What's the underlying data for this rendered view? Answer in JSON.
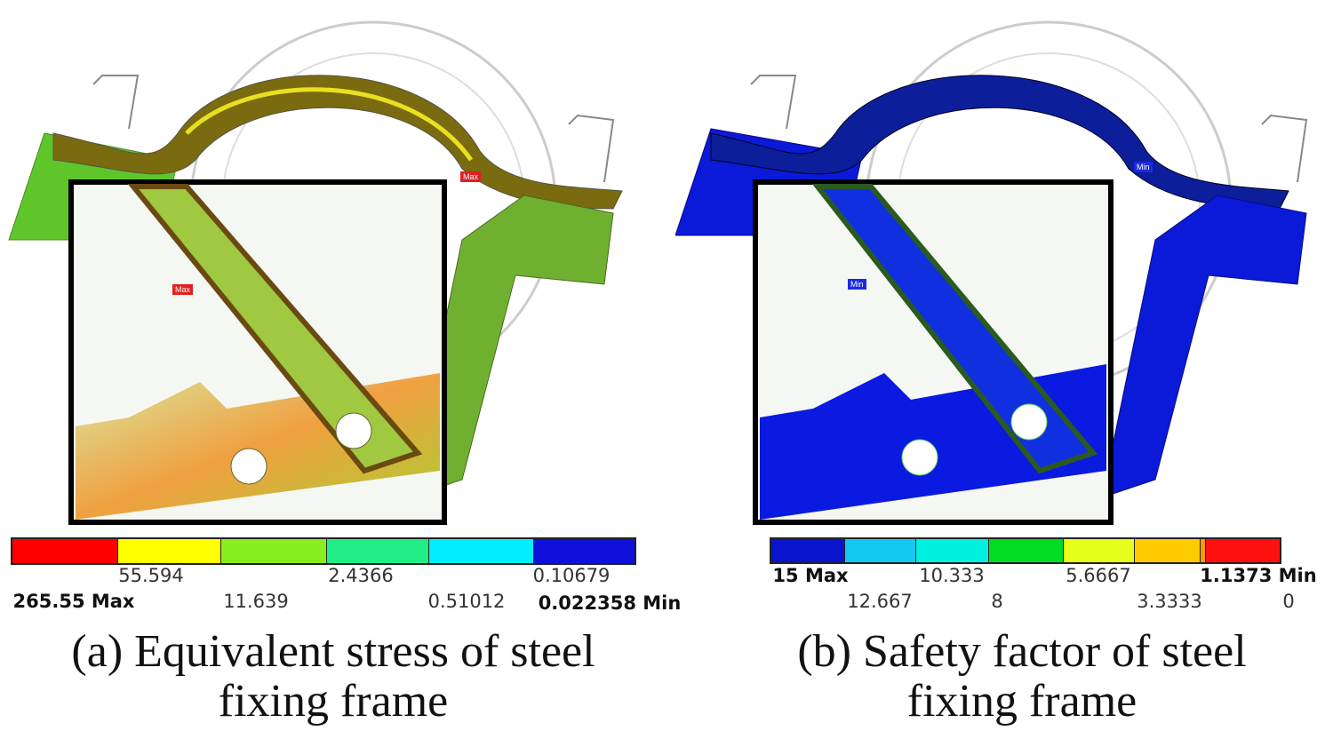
{
  "panel_a": {
    "caption_line1": "(a) Equivalent stress of steel",
    "caption_line2": "fixing frame",
    "max_tag": "Max",
    "legend": {
      "colors": [
        "#ff0000",
        "#ffff00",
        "#88ee22",
        "#22ee88",
        "#00eeff",
        "#1010dd"
      ],
      "labels_top": [
        "55.594",
        "2.4366",
        "0.10679"
      ],
      "labels_bottom": [
        "265.55 Max",
        "11.639",
        "0.51012",
        "0.022358 Min"
      ]
    }
  },
  "panel_b": {
    "caption_line1": "(b) Safety factor of steel",
    "caption_line2": "fixing frame",
    "min_tag": "Min",
    "legend": {
      "colors": [
        "#0a14cc",
        "#11c8f0",
        "#00f0e0",
        "#00dd22",
        "#e6ff1a",
        "#ffcc00",
        "#ff9900",
        "#ff1010"
      ],
      "labels_top": [
        "15 Max",
        "10.333",
        "5.6667",
        "1.1373 Min"
      ],
      "labels_bottom": [
        "12.667",
        "8",
        "3.3333",
        "0"
      ]
    }
  }
}
